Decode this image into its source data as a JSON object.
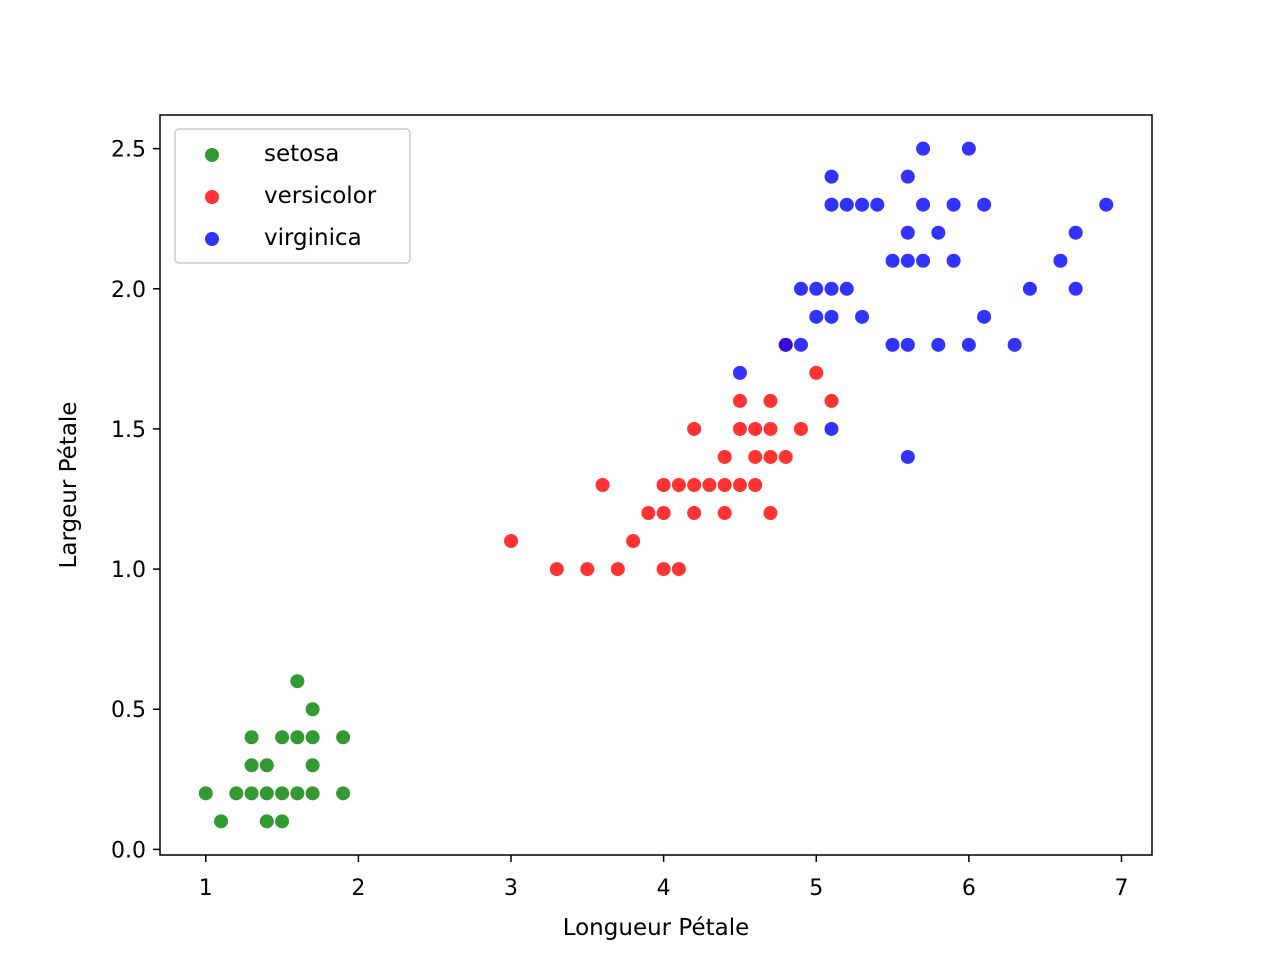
{
  "chart_data": {
    "type": "scatter",
    "title": "",
    "xlabel": "Longueur Pétale",
    "ylabel": "Largeur Pétale",
    "xlim": [
      0.7,
      7.2
    ],
    "ylim": [
      -0.02,
      2.62
    ],
    "xticks": [
      1,
      2,
      3,
      4,
      5,
      6,
      7
    ],
    "xtick_labels": [
      "1",
      "2",
      "3",
      "4",
      "5",
      "6",
      "7"
    ],
    "yticks": [
      0.0,
      0.5,
      1.0,
      1.5,
      2.0,
      2.5
    ],
    "ytick_labels": [
      "0.0",
      "0.5",
      "1.0",
      "1.5",
      "2.0",
      "2.5"
    ],
    "grid": false,
    "legend_position": "top-left",
    "series": [
      {
        "name": "setosa",
        "color": "#008000",
        "points": [
          [
            1.0,
            0.2
          ],
          [
            1.1,
            0.1
          ],
          [
            1.2,
            0.2
          ],
          [
            1.3,
            0.2
          ],
          [
            1.3,
            0.3
          ],
          [
            1.3,
            0.4
          ],
          [
            1.4,
            0.1
          ],
          [
            1.4,
            0.2
          ],
          [
            1.4,
            0.3
          ],
          [
            1.5,
            0.1
          ],
          [
            1.5,
            0.2
          ],
          [
            1.5,
            0.4
          ],
          [
            1.6,
            0.2
          ],
          [
            1.6,
            0.4
          ],
          [
            1.6,
            0.6
          ],
          [
            1.7,
            0.2
          ],
          [
            1.7,
            0.3
          ],
          [
            1.7,
            0.4
          ],
          [
            1.7,
            0.5
          ],
          [
            1.9,
            0.2
          ],
          [
            1.9,
            0.4
          ]
        ]
      },
      {
        "name": "versicolor",
        "color": "#ff0000",
        "points": [
          [
            3.0,
            1.1
          ],
          [
            3.3,
            1.0
          ],
          [
            3.5,
            1.0
          ],
          [
            3.6,
            1.3
          ],
          [
            3.7,
            1.0
          ],
          [
            3.8,
            1.1
          ],
          [
            3.9,
            1.2
          ],
          [
            4.0,
            1.0
          ],
          [
            4.0,
            1.2
          ],
          [
            4.0,
            1.3
          ],
          [
            4.1,
            1.0
          ],
          [
            4.1,
            1.3
          ],
          [
            4.2,
            1.2
          ],
          [
            4.2,
            1.3
          ],
          [
            4.2,
            1.5
          ],
          [
            4.3,
            1.3
          ],
          [
            4.4,
            1.2
          ],
          [
            4.4,
            1.3
          ],
          [
            4.4,
            1.4
          ],
          [
            4.5,
            1.3
          ],
          [
            4.5,
            1.5
          ],
          [
            4.5,
            1.6
          ],
          [
            4.6,
            1.3
          ],
          [
            4.6,
            1.4
          ],
          [
            4.6,
            1.5
          ],
          [
            4.7,
            1.2
          ],
          [
            4.7,
            1.4
          ],
          [
            4.7,
            1.5
          ],
          [
            4.7,
            1.6
          ],
          [
            4.8,
            1.4
          ],
          [
            4.8,
            1.8
          ],
          [
            4.9,
            1.5
          ],
          [
            5.0,
            1.7
          ],
          [
            5.1,
            1.6
          ]
        ]
      },
      {
        "name": "virginica",
        "color": "#0000ff",
        "points": [
          [
            4.5,
            1.7
          ],
          [
            4.8,
            1.8
          ],
          [
            4.9,
            1.8
          ],
          [
            4.9,
            2.0
          ],
          [
            5.0,
            1.9
          ],
          [
            5.0,
            2.0
          ],
          [
            5.1,
            1.5
          ],
          [
            5.1,
            1.9
          ],
          [
            5.1,
            2.0
          ],
          [
            5.1,
            2.3
          ],
          [
            5.1,
            2.4
          ],
          [
            5.2,
            2.0
          ],
          [
            5.2,
            2.3
          ],
          [
            5.3,
            1.9
          ],
          [
            5.3,
            2.3
          ],
          [
            5.4,
            2.3
          ],
          [
            5.5,
            1.8
          ],
          [
            5.5,
            2.1
          ],
          [
            5.6,
            1.4
          ],
          [
            5.6,
            1.8
          ],
          [
            5.6,
            2.1
          ],
          [
            5.6,
            2.2
          ],
          [
            5.6,
            2.4
          ],
          [
            5.7,
            2.1
          ],
          [
            5.7,
            2.3
          ],
          [
            5.7,
            2.5
          ],
          [
            5.8,
            1.8
          ],
          [
            5.8,
            2.2
          ],
          [
            5.9,
            2.1
          ],
          [
            5.9,
            2.3
          ],
          [
            6.0,
            1.8
          ],
          [
            6.0,
            2.5
          ],
          [
            6.1,
            1.9
          ],
          [
            6.1,
            2.3
          ],
          [
            6.3,
            1.8
          ],
          [
            6.4,
            2.0
          ],
          [
            6.6,
            2.1
          ],
          [
            6.7,
            2.0
          ],
          [
            6.7,
            2.2
          ],
          [
            6.9,
            2.3
          ]
        ]
      }
    ]
  }
}
